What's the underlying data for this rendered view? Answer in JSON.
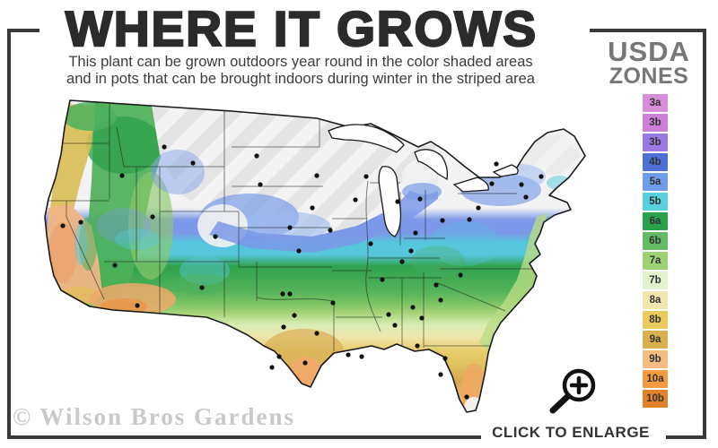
{
  "header": {
    "title": "WHERE IT GROWS",
    "subtitle_line1": "This plant can be grown outdoors year round in the color shaded areas",
    "subtitle_line2": "and in pots that can be brought indoors during winter in the striped area"
  },
  "legend": {
    "title_line1": "USDA",
    "title_line2": "ZONES",
    "zones": [
      {
        "label": "3a",
        "color": "#d88dd8"
      },
      {
        "label": "3b",
        "color": "#cb7fd6"
      },
      {
        "label": "3b",
        "color": "#9b79e3"
      },
      {
        "label": "4b",
        "color": "#4e6fd6"
      },
      {
        "label": "5a",
        "color": "#6f9ceb"
      },
      {
        "label": "5b",
        "color": "#57cfe0"
      },
      {
        "label": "6a",
        "color": "#2ba14b"
      },
      {
        "label": "6b",
        "color": "#63bb63"
      },
      {
        "label": "7a",
        "color": "#9ed173"
      },
      {
        "label": "7b",
        "color": "#e3f1cf"
      },
      {
        "label": "8a",
        "color": "#f1e6ad"
      },
      {
        "label": "8b",
        "color": "#eaca5e"
      },
      {
        "label": "9a",
        "color": "#dab04f"
      },
      {
        "label": "9b",
        "color": "#f5bb81"
      },
      {
        "label": "10a",
        "color": "#f39b43"
      },
      {
        "label": "10b",
        "color": "#e1822d"
      }
    ]
  },
  "map": {
    "watermark": "© Wilson Bros Gardens"
  },
  "footer": {
    "enlarge_label": "CLICK TO ENLARGE"
  },
  "icons": {
    "enlarge": "magnifying-glass-plus"
  },
  "colors": {
    "frame": "#3a3a3a",
    "title_text": "#2b2b2b",
    "legend_title_text": "#777777",
    "watermark_text": "#c9c9c9"
  }
}
